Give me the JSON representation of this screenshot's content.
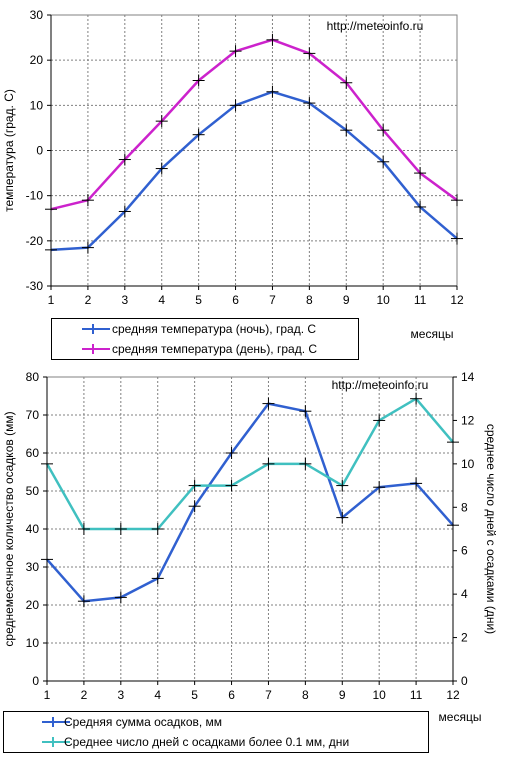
{
  "chart_data": [
    {
      "type": "line",
      "source": "http://meteoinfo.ru",
      "categories": [
        "1",
        "2",
        "3",
        "4",
        "5",
        "6",
        "7",
        "8",
        "9",
        "10",
        "11",
        "12"
      ],
      "xlabel": "месяцы",
      "ylabel": "температура (град. С)",
      "ylim": [
        -30,
        30
      ],
      "yticks": [
        "30",
        "20",
        "10",
        "0",
        "-10",
        "-20",
        "-30"
      ],
      "grid": true,
      "legend_placement": "bottom",
      "series": [
        {
          "name": "средняя температура (ночь), град. С",
          "color": "#3060d0",
          "values": [
            -22,
            -21.5,
            -13.5,
            -4,
            3.5,
            10,
            13,
            10.5,
            4.5,
            -2.5,
            -12.5,
            -19.5
          ]
        },
        {
          "name": "средняя температура (день), град. С",
          "color": "#cc22cc",
          "values": [
            -13,
            -11,
            -2,
            6.5,
            15.5,
            22,
            24.5,
            21.5,
            15,
            4.5,
            -5,
            -11
          ]
        }
      ]
    },
    {
      "type": "line",
      "source": "http://meteoinfo.ru",
      "categories": [
        "1",
        "2",
        "3",
        "4",
        "5",
        "6",
        "7",
        "8",
        "9",
        "10",
        "11",
        "12"
      ],
      "xlabel": "месяцы",
      "ylabel": "среднемесячное количество осадков (мм)",
      "y2label": "среднее число дней с осадками (дни)",
      "ylim": [
        0,
        80
      ],
      "y2lim": [
        0,
        14
      ],
      "yticks": [
        "80",
        "70",
        "60",
        "50",
        "40",
        "30",
        "20",
        "10",
        "0"
      ],
      "y2ticks": [
        "14",
        "12",
        "10",
        "8",
        "6",
        "4",
        "2",
        "0"
      ],
      "grid": true,
      "legend_placement": "bottom",
      "series": [
        {
          "name": "Средняя сумма осадков, мм",
          "color": "#3060d0",
          "axis": "left",
          "values": [
            32,
            21,
            22,
            27,
            46,
            60,
            73,
            71,
            43,
            51,
            52,
            41
          ]
        },
        {
          "name": "Среднее число дней с  осадками более 0.1 мм, дни",
          "color": "#40c0c0",
          "axis": "right",
          "values": [
            10,
            7,
            7,
            7,
            9,
            9,
            10,
            10,
            9,
            12,
            13,
            11
          ]
        }
      ]
    }
  ]
}
